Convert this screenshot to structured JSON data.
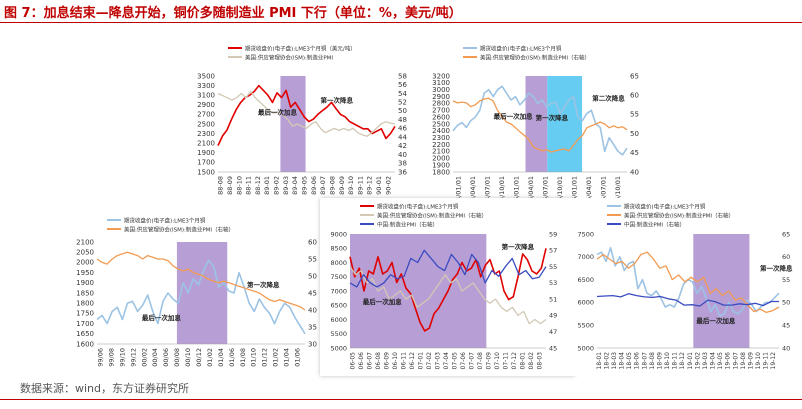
{
  "figure": {
    "title": "图 7：加息结束—降息开始，铜价多随制造业 PMI 下行（单位：%，美元/吨）",
    "source": "数据来源：wind，东方证券研究所"
  },
  "chart_data": [
    {
      "type": "line",
      "legend": [
        "期货收盘价(电子盘):LME3个月铜（美元/吨）",
        "美国:供应管理协会(ISM):制造业PMI"
      ],
      "x_ticks": [
        "88-08",
        "88-09",
        "88-10",
        "88-11",
        "88-12",
        "89-01",
        "89-02",
        "89-03",
        "89-04",
        "89-05",
        "89-06",
        "89-07",
        "89-08",
        "89-09",
        "89-10",
        "89-11",
        "89-12",
        "90-01",
        "90-02"
      ],
      "ylim_left": [
        1500,
        3500
      ],
      "left_ticks": [
        1500,
        1700,
        1900,
        2100,
        2300,
        2500,
        2700,
        2900,
        3100,
        3300,
        3500
      ],
      "ylim_right": [
        36,
        58
      ],
      "right_ticks": [
        36,
        38,
        40,
        42,
        44,
        46,
        48,
        50,
        52,
        54,
        56,
        58
      ],
      "shade": [
        6.2,
        8.9
      ],
      "annotations": [
        {
          "text": "最后一次加息",
          "x": 3.8,
          "y": 2700
        },
        {
          "text": "第一次降息",
          "x": 10.5,
          "y": 2950
        }
      ],
      "series": [
        {
          "color": "#e00000",
          "axis": "left",
          "values": [
            2050,
            2250,
            2380,
            2600,
            2800,
            2950,
            3050,
            3100,
            3180,
            3300,
            3200,
            3100,
            2950,
            3150,
            3050,
            3200,
            2850,
            2950,
            2800,
            2650,
            2550,
            2600,
            2700,
            2780,
            2850,
            2950,
            2820,
            2700,
            2650,
            2550,
            2500,
            2450,
            2400,
            2400,
            2300,
            2350,
            2400,
            2200,
            2300,
            2450
          ]
        },
        {
          "color": "#d2c8b4",
          "axis": "right",
          "values": [
            54,
            53.5,
            53,
            52.5,
            53,
            54,
            53,
            54.5,
            53,
            52,
            51,
            50,
            49.5,
            49.8,
            49,
            48,
            46.5,
            47,
            46.5,
            46,
            47,
            47.5,
            46,
            45,
            45.5,
            46,
            45.5,
            46,
            45.5,
            46,
            45,
            44.5,
            44.2,
            45,
            46,
            47,
            47.5,
            47.2,
            47
          ]
        }
      ]
    },
    {
      "type": "line",
      "legend": [
        "期货收盘价(电子盘):LME3个月铜",
        "美国:供应管理协会(ISM):制造业PMI（右轴）"
      ],
      "x_ticks": [
        "1994/01/01",
        "1994/04/01",
        "1994/07/01",
        "1994/10/01",
        "1995/01/01",
        "1995/04/01",
        "1995/07/01",
        "1995/10/01",
        "1996/01/01",
        "1996/04/01",
        "1996/07/01",
        "1996/10/01"
      ],
      "ylim_left": [
        1800,
        3200
      ],
      "left_ticks": [
        1800,
        1900,
        2000,
        2100,
        2200,
        2300,
        2400,
        2500,
        2600,
        2700,
        2800,
        2900,
        3000,
        3100,
        3200
      ],
      "ylim_right": [
        40,
        65
      ],
      "right_ticks": [
        40,
        45,
        50,
        55,
        60,
        65
      ],
      "shades": [
        {
          "from": 4.5,
          "to": 6.0,
          "color": "#b79fd6"
        },
        {
          "from": 6.0,
          "to": 8.4,
          "color": "#66ccf2"
        }
      ],
      "annotations": [
        {
          "text": "最后一次加息",
          "x": 2.3,
          "y": 2580
        },
        {
          "text": "第一次降息",
          "x": 5.2,
          "y": 2560
        },
        {
          "text": "第二次降息",
          "x": 9.1,
          "y": 2840
        }
      ],
      "series": [
        {
          "color": "#9cc3e4",
          "axis": "left",
          "values": [
            2400,
            2480,
            2520,
            2450,
            2550,
            2600,
            2700,
            2950,
            3000,
            2900,
            3000,
            3050,
            2950,
            2850,
            2900,
            2780,
            2850,
            2950,
            2900,
            2800,
            2850,
            2750,
            2800,
            2820,
            2650,
            2750,
            2850,
            2900,
            2600,
            2550,
            2650,
            2700,
            2500,
            2450,
            2100,
            2300,
            2200,
            2100,
            2050,
            2150
          ]
        },
        {
          "color": "#f29b52",
          "axis": "right",
          "values": [
            58.5,
            58,
            58.2,
            58,
            57,
            57.5,
            58.5,
            59,
            59.2,
            58.5,
            56,
            54.5,
            53,
            52.5,
            51.5,
            50.5,
            49.5,
            48.5,
            46.5,
            46,
            45.5,
            45.8,
            45.2,
            45.5,
            45.8,
            46,
            45.5,
            47,
            48.5,
            49.5,
            51.5,
            52,
            52.5,
            53,
            52.5,
            51.5,
            52,
            51.5,
            51.8,
            51
          ]
        }
      ]
    },
    {
      "type": "line",
      "legend": [
        "期货收盘价(电子盘):LME3个月铜",
        "美国:供应管理协会(ISM):制造业PMI（右轴）"
      ],
      "x_ticks": [
        "99/06",
        "99/08",
        "99/10",
        "99/12",
        "00/02",
        "00/04",
        "00/06",
        "00/08",
        "00/10",
        "00/12",
        "01/02",
        "01/04",
        "01/06",
        "01/08",
        "01/10",
        "01/12",
        "01/02",
        "01/04",
        "01/06"
      ],
      "ylim_left": [
        1600,
        2100
      ],
      "left_ticks": [
        1600,
        1650,
        1700,
        1750,
        1800,
        1850,
        1900,
        1950,
        2000,
        2050,
        2100
      ],
      "ylim_right": [
        30,
        60
      ],
      "right_ticks": [
        30,
        35,
        40,
        45,
        50,
        55,
        60
      ],
      "shade": [
        6.8,
        11.4
      ],
      "annotations": [
        {
          "text": "第一次降息",
          "x": 13.2,
          "y": 1880
        },
        {
          "text": "最后一次加息",
          "x": 3.6,
          "y": 1718
        }
      ],
      "series": [
        {
          "color": "#9cc3e4",
          "axis": "left",
          "values": [
            1720,
            1740,
            1700,
            1760,
            1780,
            1720,
            1800,
            1810,
            1760,
            1790,
            1840,
            1760,
            1700,
            1810,
            1850,
            1820,
            1800,
            1900,
            1850,
            1920,
            1890,
            1960,
            2010,
            1980,
            1880,
            1900,
            1860,
            1850,
            1950,
            1880,
            1800,
            1760,
            1820,
            1780,
            1750,
            1700,
            1760,
            1800,
            1780,
            1730,
            1690,
            1650
          ]
        },
        {
          "color": "#f29b52",
          "axis": "right",
          "values": [
            55,
            54,
            53.5,
            55,
            56,
            56.5,
            57,
            56.5,
            56,
            55,
            56,
            55.5,
            55,
            55,
            54.5,
            53,
            52,
            51.5,
            52,
            51,
            50.5,
            50,
            49,
            48.5,
            48,
            48.5,
            48,
            47.5,
            47,
            46.5,
            46,
            45.5,
            45,
            44,
            43,
            42.5,
            43,
            42.5,
            42,
            41.5,
            41,
            40
          ]
        }
      ]
    },
    {
      "type": "line",
      "legend": [
        "期货收盘价(电子盘):LME3个月铜",
        "美国:供应管理协会(ISM):制造业PMI（右轴）",
        "中国:制造业PMI（右轴）"
      ],
      "x_ticks": [
        "06-05",
        "06-06",
        "06-07",
        "06-08",
        "06-09",
        "06-10",
        "06-11",
        "06-12",
        "07-01",
        "07-02",
        "07-03",
        "07-04",
        "07-05",
        "07-06",
        "07-07",
        "07-08",
        "07-09",
        "07-10",
        "07-11",
        "07-12",
        "08-01",
        "08-02",
        "08-03"
      ],
      "ylim_left": [
        5000,
        9000
      ],
      "left_ticks": [
        5000,
        5500,
        6000,
        6500,
        7000,
        7500,
        8000,
        8500,
        9000
      ],
      "ylim_right": [
        45,
        59
      ],
      "right_ticks": [
        45,
        47,
        49,
        51,
        53,
        55,
        57,
        59
      ],
      "shade": [
        -1,
        15.5
      ],
      "annotations": [
        {
          "text": "第一次降息",
          "x": 17.3,
          "y": 8480
        },
        {
          "text": "最后一次加息",
          "x": 1,
          "y": 6540
        }
      ],
      "series": [
        {
          "color": "#e00000",
          "axis": "left",
          "values": [
            8200,
            7500,
            7800,
            7000,
            7700,
            7600,
            8200,
            7600,
            7700,
            8000,
            7300,
            7600,
            7100,
            6900,
            6400,
            5900,
            5600,
            5700,
            6200,
            6400,
            6700,
            7000,
            7400,
            7600,
            8000,
            7700,
            7800,
            8100,
            7500,
            7900,
            8100,
            7600,
            7700,
            7000,
            6700,
            6800,
            7500,
            8300,
            8100,
            7700,
            7600,
            7800,
            8500
          ]
        },
        {
          "color": "#d2c8b4",
          "axis": "right",
          "values": [
            55,
            54,
            54.5,
            53,
            53.5,
            52,
            52.5,
            51,
            51.5,
            52,
            51,
            51.5,
            50,
            50.5,
            51,
            52,
            53,
            54,
            53,
            53.5,
            52,
            52.5,
            53,
            52,
            51,
            50.5,
            51,
            50,
            49.5,
            50,
            49,
            49.5,
            48,
            48.5,
            48,
            48.5
          ]
        },
        {
          "color": "#3b4cc0",
          "axis": "right",
          "values": [
            53,
            52.5,
            54,
            53,
            52.5,
            53,
            54,
            53.5,
            53.8,
            56,
            55.5,
            57,
            56,
            55,
            54.5,
            56.5,
            55.5,
            54,
            56.5,
            55.5,
            53,
            54.5,
            53.8,
            55,
            56,
            54,
            54.5,
            53.5,
            53.7,
            55
          ]
        }
      ]
    },
    {
      "type": "line",
      "legend": [
        "期货收盘价(电子盘):LME3个月铜",
        "美国:供应管理协会(ISM):制造业PMI（右轴）",
        "中国:制造业PMI（右轴）"
      ],
      "x_ticks": [
        "18-01",
        "18-02",
        "18-03",
        "18-04",
        "18-05",
        "18-06",
        "18-07",
        "18-08",
        "18-09",
        "18-10",
        "18-11",
        "18-12",
        "19-01",
        "19-02",
        "19-03",
        "19-04",
        "19-05",
        "19-06",
        "19-07",
        "19-08",
        "19-09",
        "19-10",
        "19-11",
        "19-12"
      ],
      "ylim_left": [
        5000,
        7500
      ],
      "left_ticks": [
        5000,
        5500,
        6000,
        6500,
        7000,
        7500
      ],
      "ylim_right": [
        40,
        65
      ],
      "right_ticks": [
        40,
        45,
        50,
        55,
        60,
        65
      ],
      "shade": [
        12.2,
        19.6
      ],
      "annotations": [
        {
          "text": "第一次降息",
          "x": 21,
          "y": 6700
        },
        {
          "text": "最后一次加息",
          "x": 12.6,
          "y": 5550
        }
      ],
      "series": [
        {
          "color": "#9cc3e4",
          "axis": "left",
          "values": [
            7050,
            7100,
            6900,
            7200,
            6800,
            7000,
            6700,
            6850,
            6900,
            6300,
            6500,
            6200,
            6150,
            6250,
            6100,
            5900,
            5950,
            5900,
            6100,
            6400,
            6500,
            6450,
            6200,
            6350,
            6100,
            5800,
            5950,
            5700,
            5750,
            6000,
            5800,
            5750,
            5850,
            6050,
            5950,
            5800,
            5900,
            6000,
            6000,
            6100,
            6200
          ]
        },
        {
          "color": "#f29b52",
          "axis": "right",
          "values": [
            59.5,
            60.5,
            59.5,
            58.5,
            59,
            57.5,
            58.5,
            60.5,
            61,
            59.5,
            57.5,
            58,
            55,
            56,
            54.5,
            55.5,
            54.5,
            55.5,
            52,
            53,
            51.5,
            52.5,
            50.5,
            51,
            49.5,
            48,
            48.5,
            47.8,
            48.2,
            49
          ]
        },
        {
          "color": "#3b4cc0",
          "axis": "right",
          "values": [
            51.3,
            51.4,
            51.5,
            51.2,
            51.9,
            51.5,
            51.2,
            51.1,
            51.3,
            50.8,
            50.5,
            49.4,
            49.5,
            49.2,
            50.5,
            50.1,
            49.4,
            49.4,
            49.7,
            49.5,
            49.8,
            49.3,
            50.2,
            50.2
          ]
        }
      ]
    }
  ]
}
